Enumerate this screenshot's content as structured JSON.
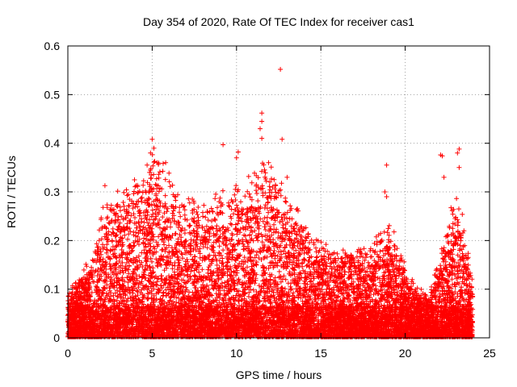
{
  "chart_data": {
    "type": "scatter",
    "title": "Day 354 of 2020, Rate Of TEC Index for receiver cas1",
    "xlabel": "GPS time / hours",
    "ylabel": "ROTI / TECUs",
    "xlim": [
      0,
      25
    ],
    "ylim": [
      0,
      0.6
    ],
    "xticks": [
      "0",
      "5",
      "10",
      "15",
      "20",
      "25"
    ],
    "yticks": [
      "0",
      "0.1",
      "0.2",
      "0.3",
      "0.4",
      "0.5",
      "0.6"
    ],
    "grid": true,
    "marker": "+",
    "point_color": "#ff0000",
    "grid_color": "#a0a0a0",
    "envelope": {
      "x": [
        0.0,
        0.3,
        0.6,
        1.0,
        1.5,
        2.0,
        2.5,
        3.0,
        3.5,
        4.0,
        4.5,
        5.0,
        5.5,
        6.0,
        6.5,
        7.0,
        7.5,
        8.0,
        8.5,
        9.0,
        9.5,
        10.0,
        10.5,
        11.0,
        11.5,
        12.0,
        12.5,
        13.0,
        13.5,
        14.0,
        14.5,
        15.0,
        15.5,
        16.0,
        16.5,
        17.0,
        17.5,
        18.0,
        18.5,
        19.0,
        19.5,
        20.0,
        20.5,
        21.0,
        21.5,
        22.0,
        22.5,
        23.0,
        23.5,
        24.0
      ],
      "peak": [
        0.09,
        0.1,
        0.11,
        0.13,
        0.15,
        0.24,
        0.27,
        0.27,
        0.29,
        0.3,
        0.3,
        0.35,
        0.33,
        0.3,
        0.26,
        0.25,
        0.27,
        0.24,
        0.26,
        0.28,
        0.26,
        0.3,
        0.29,
        0.31,
        0.33,
        0.32,
        0.3,
        0.26,
        0.25,
        0.22,
        0.2,
        0.19,
        0.18,
        0.17,
        0.17,
        0.18,
        0.16,
        0.19,
        0.2,
        0.22,
        0.18,
        0.13,
        0.1,
        0.09,
        0.09,
        0.15,
        0.22,
        0.27,
        0.22,
        0.1
      ]
    },
    "outliers": [
      {
        "x": 12.6,
        "y": 0.552
      },
      {
        "x": 11.5,
        "y": 0.462
      },
      {
        "x": 11.5,
        "y": 0.445
      },
      {
        "x": 11.4,
        "y": 0.43
      },
      {
        "x": 11.5,
        "y": 0.41
      },
      {
        "x": 12.7,
        "y": 0.408
      },
      {
        "x": 5.0,
        "y": 0.408
      },
      {
        "x": 5.1,
        "y": 0.39
      },
      {
        "x": 4.9,
        "y": 0.38
      },
      {
        "x": 9.2,
        "y": 0.397
      },
      {
        "x": 10.1,
        "y": 0.382
      },
      {
        "x": 10.0,
        "y": 0.37
      },
      {
        "x": 23.2,
        "y": 0.388
      },
      {
        "x": 23.1,
        "y": 0.38
      },
      {
        "x": 22.1,
        "y": 0.376
      },
      {
        "x": 22.2,
        "y": 0.374
      },
      {
        "x": 18.9,
        "y": 0.355
      },
      {
        "x": 4.7,
        "y": 0.355
      },
      {
        "x": 5.3,
        "y": 0.36
      },
      {
        "x": 5.8,
        "y": 0.36
      },
      {
        "x": 11.9,
        "y": 0.36
      },
      {
        "x": 2.2,
        "y": 0.313
      },
      {
        "x": 13.0,
        "y": 0.33
      },
      {
        "x": 18.8,
        "y": 0.3
      },
      {
        "x": 18.9,
        "y": 0.29
      },
      {
        "x": 22.3,
        "y": 0.33
      },
      {
        "x": 23.2,
        "y": 0.35
      }
    ]
  }
}
